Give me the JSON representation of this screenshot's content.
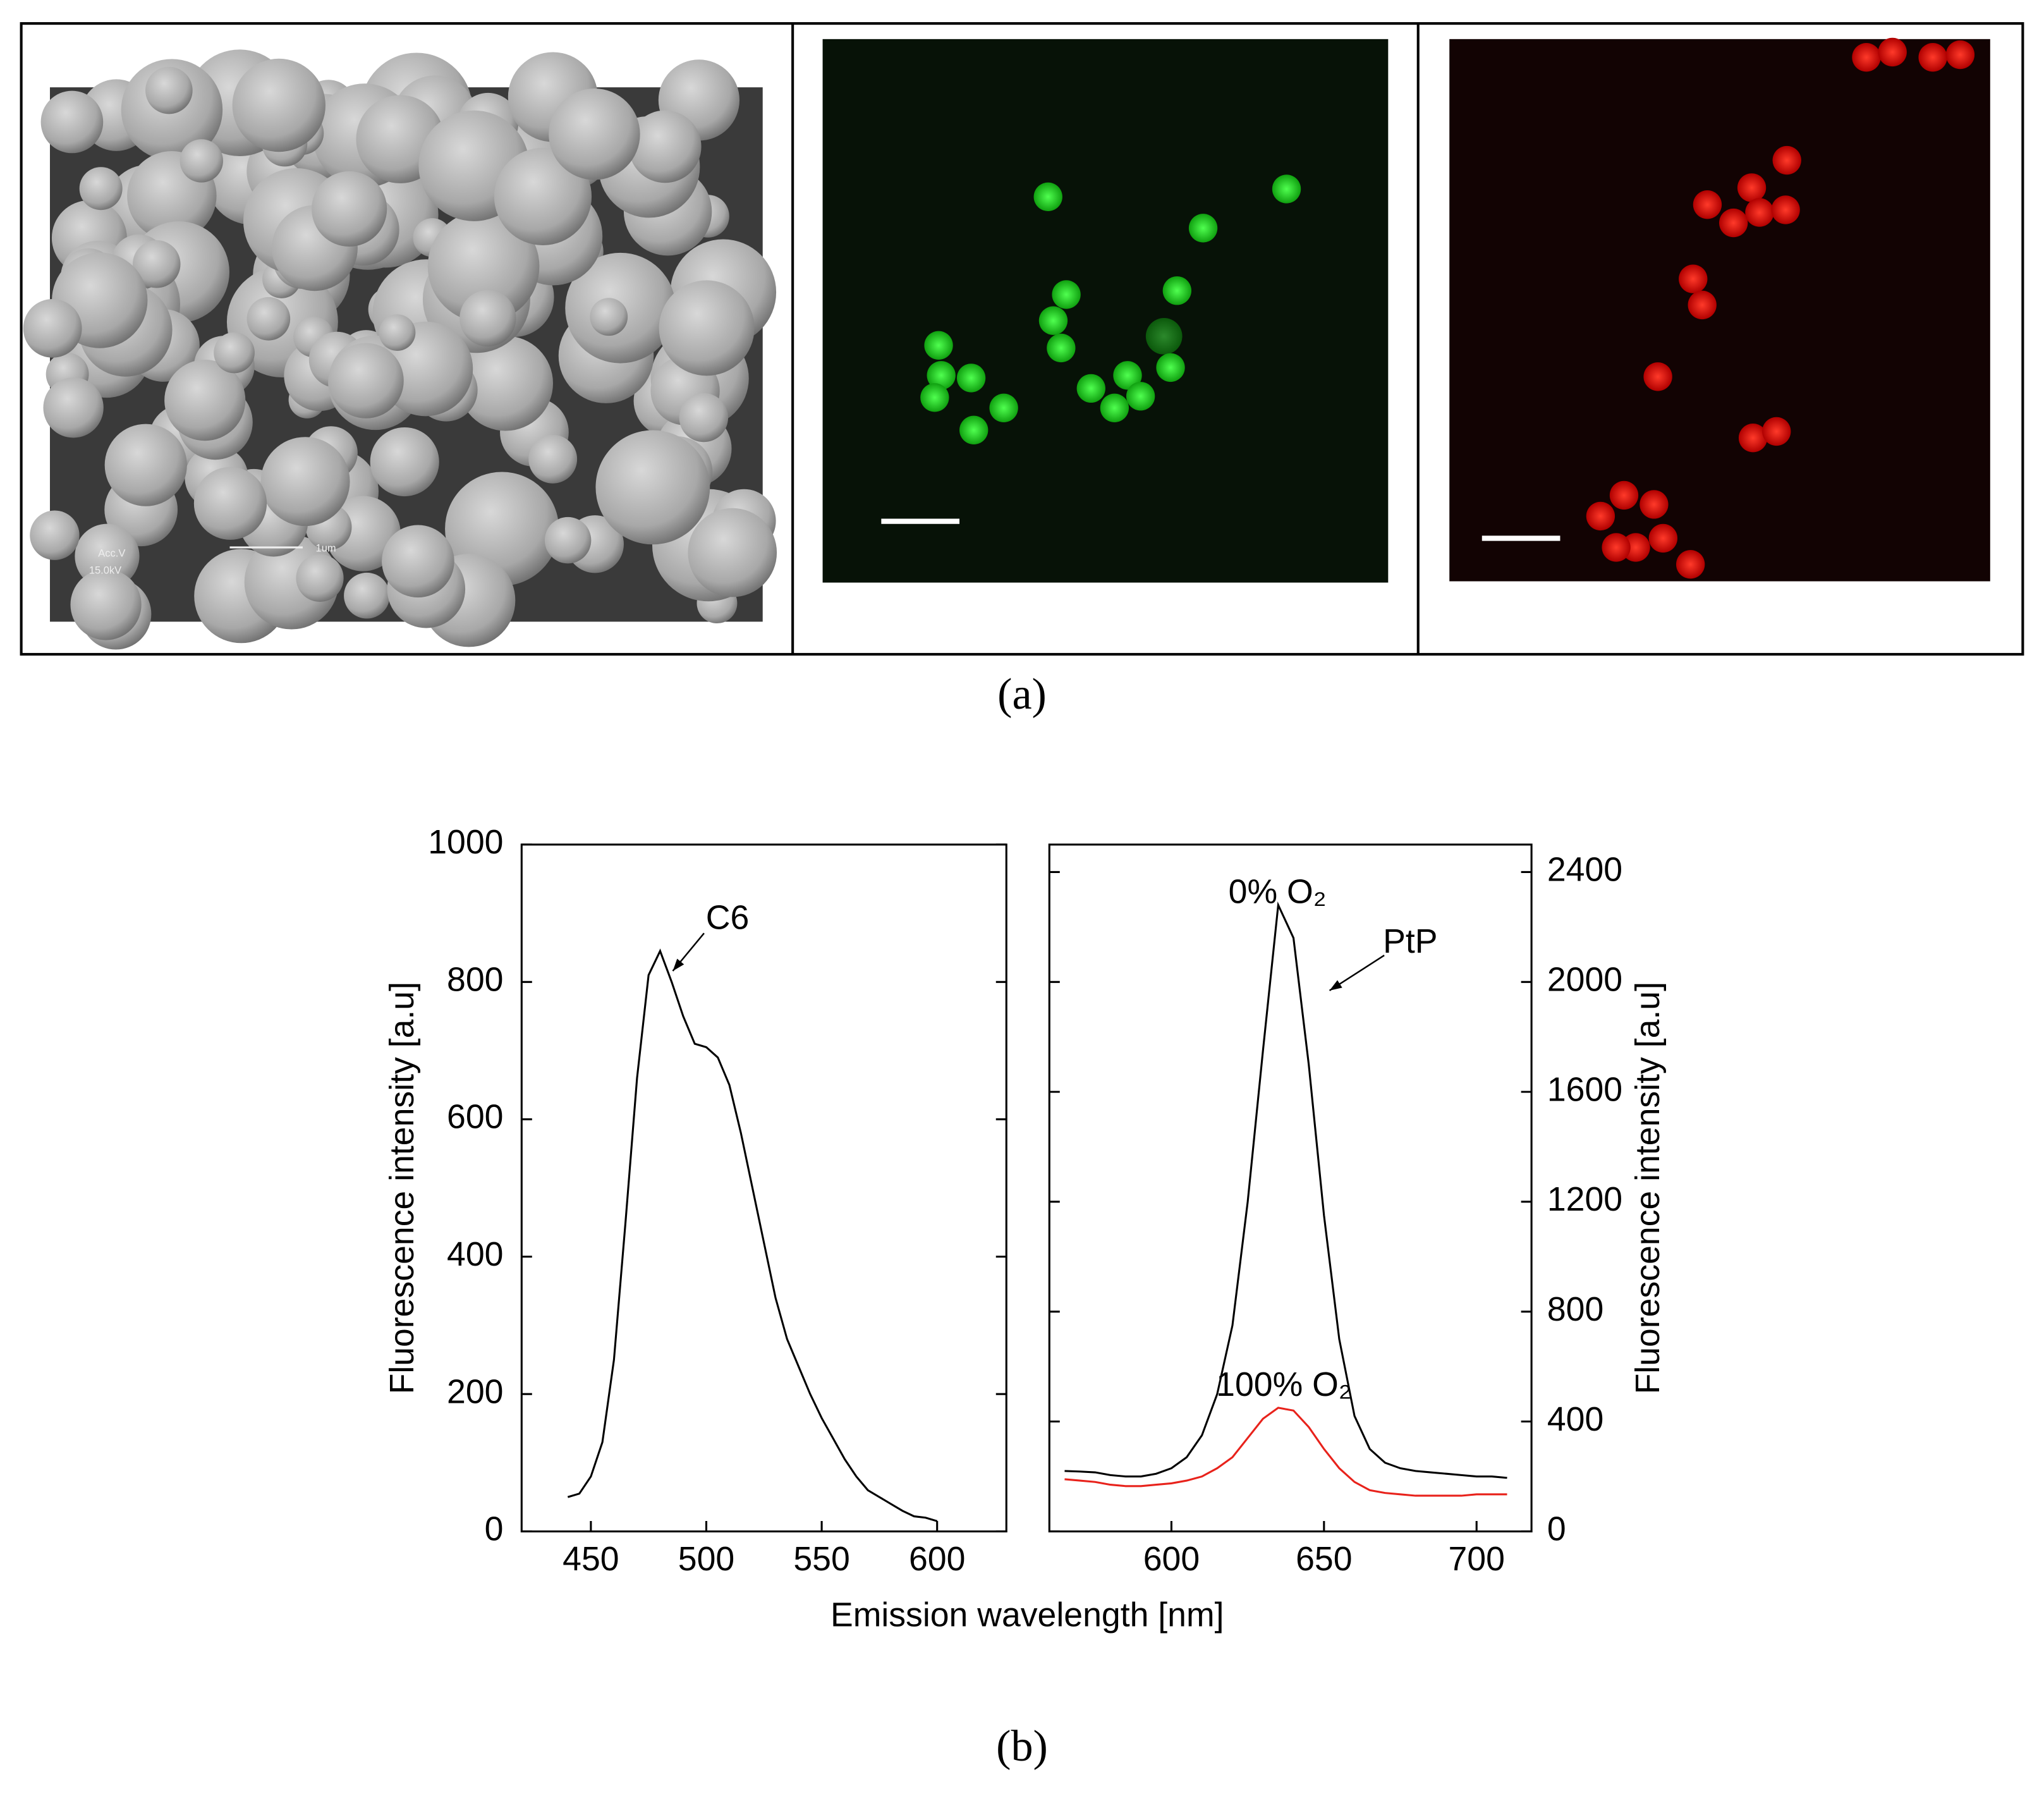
{
  "panel_labels": [
    "(a)",
    "(b)"
  ],
  "sem_labels": [
    "Acc.V",
    "15.0kV",
    "1um"
  ],
  "chart_data": [
    {
      "type": "line",
      "xlabel": "Emission wavelength [nm]",
      "ylabel": "Fluorescence intensity [a.u]",
      "xlim": [
        420,
        630
      ],
      "xticks": [
        450,
        500,
        550,
        600
      ],
      "ylim": [
        0,
        1000
      ],
      "yticks": [
        0,
        200,
        400,
        600,
        800,
        1000
      ],
      "annotations": [
        "C6"
      ],
      "x": [
        440,
        445,
        450,
        455,
        460,
        465,
        470,
        475,
        480,
        485,
        490,
        495,
        500,
        505,
        510,
        515,
        520,
        525,
        530,
        535,
        540,
        545,
        550,
        555,
        560,
        565,
        570,
        575,
        580,
        585,
        590,
        595,
        600
      ],
      "series": [
        {
          "name": "C6",
          "color": "#000000",
          "values": [
            50,
            55,
            80,
            130,
            250,
            450,
            660,
            810,
            845,
            800,
            750,
            710,
            705,
            690,
            650,
            580,
            500,
            420,
            340,
            280,
            240,
            200,
            165,
            135,
            105,
            80,
            60,
            50,
            40,
            30,
            22,
            20,
            15
          ]
        }
      ]
    },
    {
      "type": "line",
      "ylabel": "Fluorescence intensity [a.u]",
      "xlim": [
        560,
        718
      ],
      "xticks": [
        600,
        650,
        700
      ],
      "y2lim": [
        0,
        2500
      ],
      "y2ticks": [
        0,
        400,
        800,
        1200,
        1600,
        2000,
        2400
      ],
      "annotations": [
        "PtP"
      ],
      "x": [
        565,
        570,
        575,
        580,
        585,
        590,
        595,
        600,
        605,
        610,
        615,
        620,
        625,
        630,
        635,
        640,
        645,
        650,
        655,
        660,
        665,
        670,
        675,
        680,
        685,
        690,
        695,
        700,
        705,
        710
      ],
      "series": [
        {
          "name": "0% O₂",
          "color": "#000000",
          "axis": "y2",
          "values": [
            220,
            218,
            215,
            205,
            200,
            200,
            210,
            230,
            270,
            350,
            500,
            750,
            1200,
            1750,
            2280,
            2160,
            1700,
            1150,
            700,
            420,
            300,
            250,
            230,
            220,
            215,
            210,
            205,
            200,
            200,
            195
          ]
        },
        {
          "name": "100% O₂",
          "color": "#e8221b",
          "axis": "y2",
          "values": [
            190,
            185,
            180,
            170,
            165,
            165,
            170,
            175,
            185,
            200,
            230,
            270,
            340,
            410,
            450,
            440,
            380,
            300,
            230,
            180,
            150,
            140,
            135,
            130,
            130,
            130,
            130,
            135,
            135,
            135
          ]
        }
      ]
    }
  ]
}
